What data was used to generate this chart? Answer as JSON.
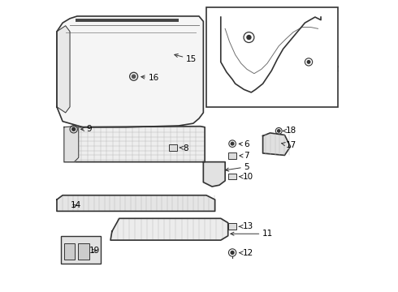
{
  "background_color": "#ffffff",
  "line_color": "#333333",
  "fig_width": 4.9,
  "fig_height": 3.6,
  "dpi": 100
}
